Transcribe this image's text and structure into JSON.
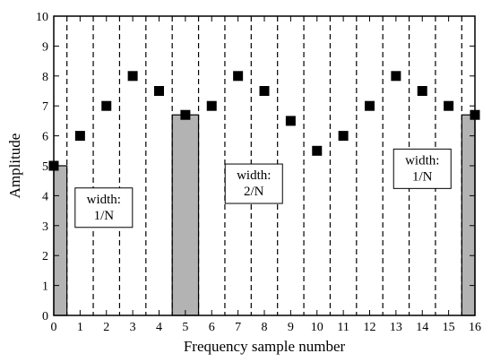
{
  "chart_data": {
    "type": "scatter",
    "title": "",
    "xlabel": "Frequency sample number",
    "ylabel": "Amplitude",
    "xlim": [
      0,
      16
    ],
    "ylim": [
      0,
      10
    ],
    "x_ticks": [
      0,
      1,
      2,
      3,
      4,
      5,
      6,
      7,
      8,
      9,
      10,
      11,
      12,
      13,
      14,
      15,
      16
    ],
    "y_ticks": [
      0,
      1,
      2,
      3,
      4,
      5,
      6,
      7,
      8,
      9,
      10
    ],
    "series": [
      {
        "x": [
          0,
          1,
          2,
          3,
          4,
          5,
          6,
          7,
          8,
          9,
          10,
          11,
          12,
          13,
          14,
          15,
          16
        ],
        "values": [
          5,
          6,
          7,
          8,
          7.5,
          6.7,
          7,
          8,
          7.5,
          6.5,
          5.5,
          6,
          7,
          8,
          7.5,
          7,
          6.7
        ]
      }
    ],
    "bars": [
      {
        "x_start": 0,
        "x_end": 0.5,
        "value": 5
      },
      {
        "x_start": 4.5,
        "x_end": 5.5,
        "value": 6.7
      },
      {
        "x_start": 15.5,
        "x_end": 16,
        "value": 6.7
      }
    ],
    "boundaries": [
      0.5,
      1.5,
      2.5,
      3.5,
      4.5,
      5.5,
      6.5,
      7.5,
      8.5,
      9.5,
      10.5,
      11.5,
      12.5,
      13.5,
      14.5,
      15.5
    ],
    "annotations": [
      {
        "lines": [
          "width:",
          "1/N"
        ],
        "x": 1.9,
        "y": 3.6
      },
      {
        "lines": [
          "width:",
          "2/N"
        ],
        "x": 7.6,
        "y": 4.4
      },
      {
        "lines": [
          "width:",
          "1/N"
        ],
        "x": 14.0,
        "y": 4.9
      }
    ],
    "colors": {
      "bar_fill": "#b3b3b3",
      "marker": "#000000"
    }
  }
}
